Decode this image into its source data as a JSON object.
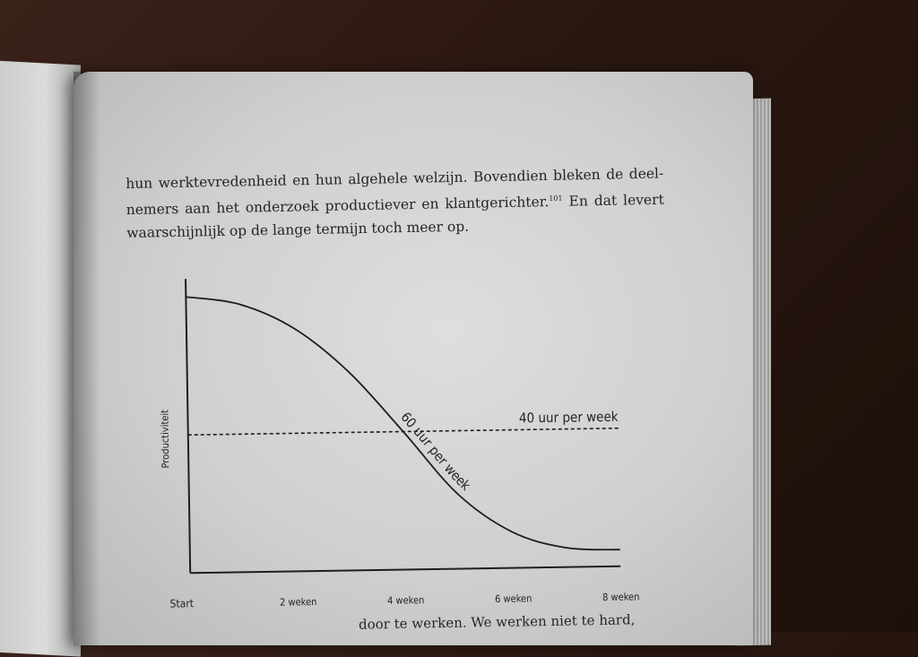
{
  "paragraph": {
    "line1": "hun werktevredenheid en hun algehele welzijn. Bovendien bleken de deel-",
    "line2_text": "nemers aan het onderzoek productiever en klantgerichter.",
    "line2_sup": "101",
    "line2_rest": " En dat levert",
    "line3": "waarschijnlijk op de lange termijn toch meer op."
  },
  "bottom_fragment": "door te werken. We werken niet te hard,",
  "chart_data": {
    "type": "line",
    "ylabel": "Productiviteit",
    "xlabel": "",
    "categories": [
      "Start",
      "2 weken",
      "4 weken",
      "6 weken",
      "8 weken"
    ],
    "x": [
      0,
      2,
      4,
      6,
      8
    ],
    "ylim": [
      0,
      1
    ],
    "grid": false,
    "series": [
      {
        "name": "60 uur per week",
        "style": "solid",
        "x": [
          0,
          1,
          2,
          3,
          4,
          5,
          6,
          7,
          8
        ],
        "values": [
          1.0,
          0.97,
          0.88,
          0.72,
          0.5,
          0.27,
          0.13,
          0.07,
          0.06
        ]
      },
      {
        "name": "40 uur per week",
        "style": "dashed",
        "x": [
          0,
          8
        ],
        "values": [
          0.5,
          0.5
        ]
      }
    ]
  }
}
